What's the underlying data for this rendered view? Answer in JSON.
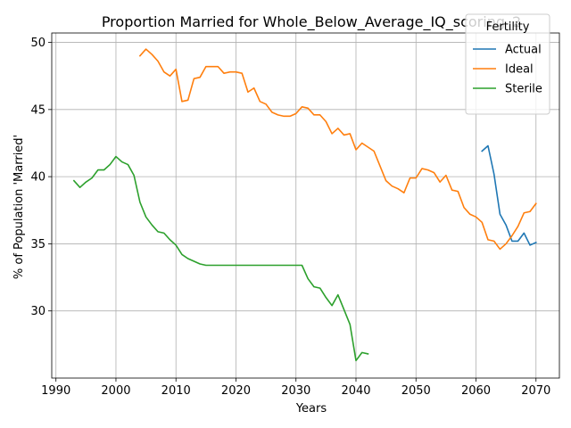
{
  "chart_data": {
    "type": "line",
    "title": "Proportion Married for Whole_Below_Average_IQ_scoring_2",
    "xlabel": "Years",
    "ylabel": "% of Population 'Married'",
    "xlim": [
      1989.3,
      2073.9
    ],
    "ylim": [
      25.0,
      50.7
    ],
    "xticks": [
      1990,
      2000,
      2010,
      2020,
      2030,
      2040,
      2050,
      2060,
      2070
    ],
    "yticks": [
      30,
      35,
      40,
      45,
      50
    ],
    "grid": true,
    "legend": {
      "title": "Fertility",
      "placement": "top-right"
    },
    "series": [
      {
        "name": "Actual",
        "color": "#1f77b4",
        "x": [
          2061,
          2062,
          2063,
          2064,
          2065,
          2066,
          2067,
          2068,
          2069,
          2070
        ],
        "y": [
          41.9,
          42.3,
          40.2,
          37.2,
          36.4,
          35.2,
          35.2,
          35.8,
          34.9,
          35.1
        ]
      },
      {
        "name": "Ideal",
        "color": "#ff7f0e",
        "x": [
          2004,
          2005,
          2006,
          2007,
          2008,
          2009,
          2010,
          2011,
          2012,
          2013,
          2014,
          2015,
          2016,
          2017,
          2018,
          2019,
          2020,
          2021,
          2022,
          2023,
          2024,
          2025,
          2026,
          2027,
          2028,
          2029,
          2030,
          2031,
          2032,
          2033,
          2034,
          2035,
          2036,
          2037,
          2038,
          2039,
          2040,
          2041,
          2042,
          2043,
          2044,
          2045,
          2046,
          2047,
          2048,
          2049,
          2050,
          2051,
          2052,
          2053,
          2054,
          2055,
          2056,
          2057,
          2058,
          2059,
          2060,
          2061,
          2062,
          2063,
          2064,
          2065,
          2066,
          2067,
          2068,
          2069,
          2070
        ],
        "y": [
          49.0,
          49.5,
          49.1,
          48.6,
          47.8,
          47.5,
          48.0,
          45.6,
          45.7,
          47.3,
          47.4,
          48.2,
          48.2,
          48.2,
          47.7,
          47.8,
          47.8,
          47.7,
          46.3,
          46.6,
          45.6,
          45.4,
          44.8,
          44.6,
          44.5,
          44.5,
          44.7,
          45.2,
          45.1,
          44.6,
          44.6,
          44.1,
          43.2,
          43.6,
          43.1,
          43.2,
          42.0,
          42.5,
          42.2,
          41.9,
          40.8,
          39.7,
          39.3,
          39.1,
          38.8,
          39.9,
          39.9,
          40.6,
          40.5,
          40.3,
          39.6,
          40.1,
          39.0,
          38.9,
          37.7,
          37.2,
          37.0,
          36.6,
          35.3,
          35.2,
          34.6,
          35.0,
          35.6,
          36.3,
          37.3,
          37.4,
          38.0
        ]
      },
      {
        "name": "Sterile",
        "color": "#2ca02c",
        "x": [
          1993,
          1994,
          1995,
          1996,
          1997,
          1998,
          1999,
          2000,
          2001,
          2002,
          2003,
          2004,
          2005,
          2006,
          2007,
          2008,
          2009,
          2010,
          2011,
          2012,
          2013,
          2014,
          2015,
          2016,
          2017,
          2018,
          2019,
          2020,
          2021,
          2022,
          2023,
          2024,
          2025,
          2026,
          2027,
          2028,
          2029,
          2030,
          2031,
          2032,
          2033,
          2034,
          2035,
          2036,
          2037,
          2038,
          2039,
          2040,
          2041,
          2042
        ],
        "y": [
          39.7,
          39.2,
          39.6,
          39.9,
          40.5,
          40.5,
          40.9,
          41.5,
          41.1,
          40.9,
          40.1,
          38.1,
          37.0,
          36.4,
          35.9,
          35.8,
          35.3,
          34.9,
          34.2,
          33.9,
          33.7,
          33.5,
          33.4,
          33.4,
          33.4,
          33.4,
          33.4,
          33.4,
          33.4,
          33.4,
          33.4,
          33.4,
          33.4,
          33.4,
          33.4,
          33.4,
          33.4,
          33.4,
          33.4,
          32.4,
          31.8,
          31.7,
          31.0,
          30.4,
          31.2,
          30.1,
          29.0,
          26.3,
          26.9,
          26.8
        ]
      }
    ]
  }
}
